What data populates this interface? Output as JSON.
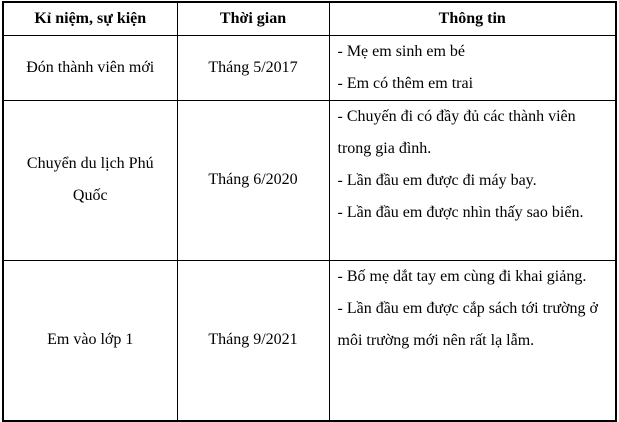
{
  "colors": {
    "background": "#ffffff",
    "border": "#000000",
    "text": "#000000"
  },
  "table": {
    "headers": {
      "event": "Kỉ niệm, sự kiện",
      "time": "Thời gian",
      "info": "Thông tin"
    },
    "rows": [
      {
        "event": "Đón thành viên mới",
        "time": "Tháng 5/2017",
        "info": [
          "- Mẹ em sinh em bé",
          "- Em có thêm em trai"
        ]
      },
      {
        "event": "Chuyển du lịch Phú Quốc",
        "time": "Tháng 6/2020",
        "info": [
          "- Chuyến đi có đầy đủ các thành viên trong gia đình.",
          "- Lần đầu em được đi máy bay.",
          "- Lần đầu em được nhìn thấy sao biển."
        ]
      },
      {
        "event": "Em vào lớp 1",
        "time": "Tháng 9/2021",
        "info": [
          "- Bố mẹ dắt tay em cùng đi khai giảng.",
          "- Lần đầu em được cắp sách tới trường ở môi trường mới nên rất lạ lẫm."
        ]
      }
    ]
  }
}
